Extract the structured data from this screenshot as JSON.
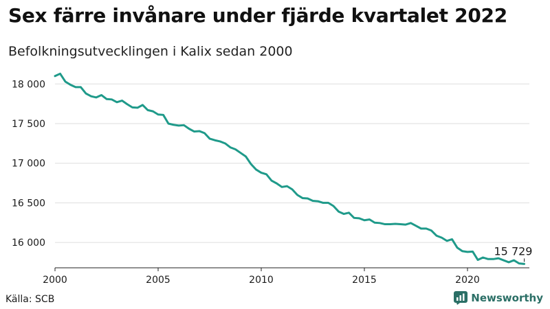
{
  "header": {
    "title": "Sex färre invånare under fjärde kvartalet 2022",
    "subtitle": "Befolkningsutvecklingen i Kalix sedan 2000"
  },
  "footer": {
    "source": "Källa: SCB",
    "brand": "Newsworthy"
  },
  "colors": {
    "line": "#1f9a8a",
    "grid": "#dddddd",
    "axis": "#222222",
    "brand": "#2b6f66"
  },
  "chart_data": {
    "type": "line",
    "title": "Sex färre invånare under fjärde kvartalet 2022",
    "subtitle": "Befolkningsutvecklingen i Kalix sedan 2000",
    "xlabel": "",
    "ylabel": "",
    "xlim": [
      2000,
      2023
    ],
    "ylim": [
      15680,
      18150
    ],
    "grid": true,
    "legend": "none",
    "x_ticks": [
      {
        "value": 2000,
        "label": "2000"
      },
      {
        "value": 2005,
        "label": "2005"
      },
      {
        "value": 2010,
        "label": "2010"
      },
      {
        "value": 2015,
        "label": "2015"
      },
      {
        "value": 2020,
        "label": "2020"
      }
    ],
    "y_ticks": [
      {
        "value": 16000,
        "label": "16 000"
      },
      {
        "value": 16500,
        "label": "16 500"
      },
      {
        "value": 17000,
        "label": "17 000"
      },
      {
        "value": 17500,
        "label": "17 500"
      },
      {
        "value": 18000,
        "label": "18 000"
      }
    ],
    "end_label": "15 729",
    "series": [
      {
        "name": "Befolkning",
        "start": 2000,
        "step": 0.25,
        "values": [
          18100,
          18130,
          18030,
          17990,
          17960,
          17960,
          17880,
          17845,
          17830,
          17860,
          17810,
          17805,
          17770,
          17790,
          17745,
          17705,
          17700,
          17735,
          17670,
          17655,
          17615,
          17610,
          17500,
          17485,
          17475,
          17480,
          17435,
          17400,
          17405,
          17380,
          17310,
          17290,
          17275,
          17250,
          17200,
          17175,
          17130,
          17085,
          16990,
          16920,
          16880,
          16860,
          16780,
          16745,
          16700,
          16710,
          16670,
          16600,
          16560,
          16555,
          16525,
          16520,
          16500,
          16500,
          16460,
          16390,
          16360,
          16375,
          16310,
          16305,
          16280,
          16290,
          16250,
          16245,
          16230,
          16230,
          16235,
          16230,
          16225,
          16245,
          16210,
          16175,
          16175,
          16150,
          16085,
          16060,
          16020,
          16040,
          15935,
          15890,
          15880,
          15885,
          15780,
          15810,
          15790,
          15790,
          15800,
          15775,
          15750,
          15775,
          15735,
          15729
        ]
      }
    ]
  }
}
